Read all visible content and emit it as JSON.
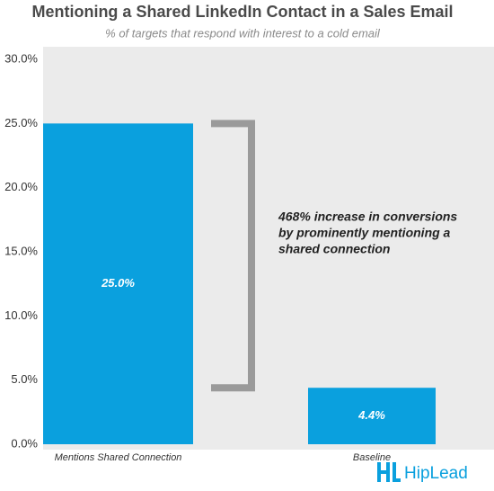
{
  "chart_data": {
    "type": "bar",
    "title": "Mentioning a Shared LinkedIn Contact in a Sales Email",
    "subtitle": "% of targets that respond with interest to a cold email",
    "categories": [
      "Mentions Shared Connection",
      "Baseline"
    ],
    "values": [
      25.0,
      4.4
    ],
    "value_labels": [
      "25.0%",
      "4.4%"
    ],
    "color": "#0aa0de",
    "ylim": [
      0,
      30
    ],
    "yticks": [
      {
        "value": 0,
        "label": "0.0%"
      },
      {
        "value": 5,
        "label": "5.0%"
      },
      {
        "value": 10,
        "label": "10.0%"
      },
      {
        "value": 15,
        "label": "15.0%"
      },
      {
        "value": 20,
        "label": "20.0%"
      },
      {
        "value": 25,
        "label": "25.0%"
      },
      {
        "value": 30,
        "label": "30.0%"
      }
    ],
    "grid": false,
    "annotation": [
      "468% increase in conversions",
      "by prominently mentioning a",
      "shared connection"
    ],
    "logo": "HipLead"
  }
}
